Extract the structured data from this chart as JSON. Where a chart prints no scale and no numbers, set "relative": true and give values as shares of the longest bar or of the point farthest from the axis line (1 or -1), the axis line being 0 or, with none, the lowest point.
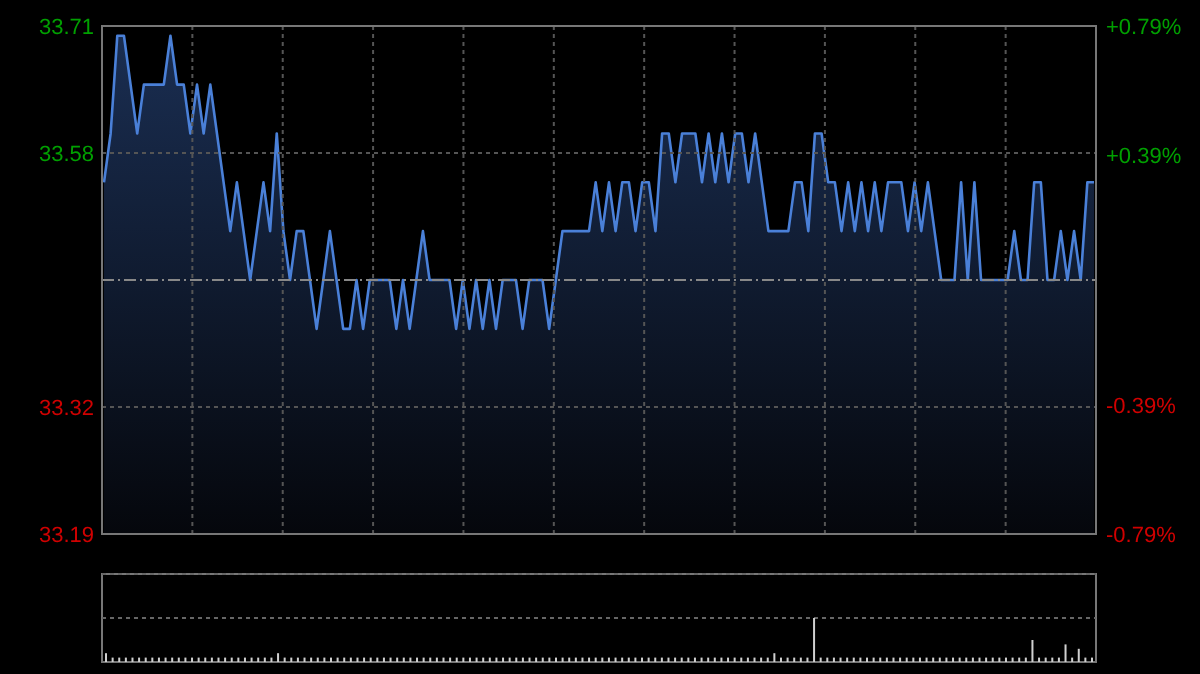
{
  "chart_data": [
    {
      "type": "area",
      "categories": [
        null,
        null,
        null,
        null,
        null,
        null,
        null,
        null,
        null,
        null,
        null,
        null,
        null,
        null,
        null,
        null,
        null,
        null,
        null,
        null,
        null,
        null,
        null,
        null,
        null,
        null,
        null,
        null,
        null,
        null,
        null,
        null,
        null,
        null,
        null,
        null,
        null,
        null,
        null,
        null,
        null,
        null,
        null,
        null,
        null,
        null,
        null,
        null,
        null,
        null,
        null,
        null,
        null,
        null,
        null,
        null,
        null,
        null,
        null,
        null,
        null,
        null,
        null,
        null,
        null,
        null,
        null,
        null,
        null,
        null,
        null,
        null,
        null,
        null,
        null,
        null,
        null,
        null,
        null,
        null,
        null,
        null,
        null,
        null,
        null,
        null,
        null,
        null,
        null,
        null,
        null,
        null,
        null,
        null,
        null,
        null,
        null,
        null,
        null,
        null,
        null,
        null,
        null,
        null,
        null,
        null,
        null,
        null,
        null,
        null,
        null,
        null,
        null,
        null,
        null,
        null,
        null,
        null,
        null,
        null,
        null,
        null,
        null,
        null,
        null,
        null,
        null,
        null,
        null,
        null,
        null,
        null,
        null,
        null,
        null,
        null,
        null,
        null,
        null,
        null,
        null,
        null,
        null,
        null,
        null,
        null,
        null,
        null,
        null,
        null
      ],
      "series": [
        {
          "color": "#4a80d8",
          "values": [
            33.55,
            33.6,
            33.7,
            33.7,
            33.65,
            33.6,
            33.65,
            33.65,
            33.65,
            33.65,
            33.7,
            33.65,
            33.65,
            33.6,
            33.65,
            33.6,
            33.65,
            33.6,
            33.55,
            33.5,
            33.55,
            33.5,
            33.45,
            33.5,
            33.55,
            33.5,
            33.6,
            33.5,
            33.45,
            33.5,
            33.5,
            33.45,
            33.4,
            33.45,
            33.5,
            33.45,
            33.4,
            33.4,
            33.45,
            33.4,
            33.45,
            33.45,
            33.45,
            33.45,
            33.4,
            33.45,
            33.4,
            33.45,
            33.5,
            33.45,
            33.45,
            33.45,
            33.45,
            33.4,
            33.45,
            33.4,
            33.45,
            33.4,
            33.45,
            33.4,
            33.45,
            33.45,
            33.45,
            33.4,
            33.45,
            33.45,
            33.45,
            33.4,
            33.45,
            33.5,
            33.5,
            33.5,
            33.5,
            33.5,
            33.55,
            33.5,
            33.55,
            33.5,
            33.55,
            33.55,
            33.5,
            33.55,
            33.55,
            33.5,
            33.6,
            33.6,
            33.55,
            33.6,
            33.6,
            33.6,
            33.55,
            33.6,
            33.55,
            33.6,
            33.55,
            33.6,
            33.6,
            33.55,
            33.6,
            33.55,
            33.5,
            33.5,
            33.5,
            33.5,
            33.55,
            33.55,
            33.5,
            33.6,
            33.6,
            33.55,
            33.55,
            33.5,
            33.55,
            33.5,
            33.55,
            33.5,
            33.55,
            33.5,
            33.55,
            33.55,
            33.55,
            33.5,
            33.55,
            33.5,
            33.55,
            33.5,
            33.45,
            33.45,
            33.45,
            33.55,
            33.45,
            33.55,
            33.45,
            33.45,
            33.45,
            33.45,
            33.45,
            33.5,
            33.45,
            33.45,
            33.55,
            33.55,
            33.45,
            33.45,
            33.5,
            33.45,
            33.5,
            33.45,
            33.55,
            33.55
          ]
        }
      ],
      "ylim": [
        33.19,
        33.71
      ],
      "yticks": [
        33.71,
        33.58,
        33.32,
        33.19
      ],
      "y2lim": [
        -0.79,
        0.79
      ],
      "y2ticks": [
        {
          "value": 0.79,
          "label": "+0.79%"
        },
        {
          "value": 0.39,
          "label": "+0.39%"
        },
        {
          "value": -0.39,
          "label": "-0.39%"
        },
        {
          "value": -0.79,
          "label": "-0.79%"
        }
      ],
      "ref_lines": [
        {
          "axis": "y",
          "value": 33.45,
          "line_style": "dashed"
        }
      ],
      "grid": true
    },
    {
      "type": "bar",
      "relative": true,
      "categories": [
        null,
        null,
        null,
        null,
        null,
        null,
        null,
        null,
        null,
        null,
        null,
        null,
        null,
        null,
        null,
        null,
        null,
        null,
        null,
        null,
        null,
        null,
        null,
        null,
        null,
        null,
        null,
        null,
        null,
        null,
        null,
        null,
        null,
        null,
        null,
        null,
        null,
        null,
        null,
        null,
        null,
        null,
        null,
        null,
        null,
        null,
        null,
        null,
        null,
        null,
        null,
        null,
        null,
        null,
        null,
        null,
        null,
        null,
        null,
        null,
        null,
        null,
        null,
        null,
        null,
        null,
        null,
        null,
        null,
        null,
        null,
        null,
        null,
        null,
        null,
        null,
        null,
        null,
        null,
        null,
        null,
        null,
        null,
        null,
        null,
        null,
        null,
        null,
        null,
        null,
        null,
        null,
        null,
        null,
        null,
        null,
        null,
        null,
        null,
        null,
        null,
        null,
        null,
        null,
        null,
        null,
        null,
        null,
        null,
        null,
        null,
        null,
        null,
        null,
        null,
        null,
        null,
        null,
        null,
        null,
        null,
        null,
        null,
        null,
        null,
        null,
        null,
        null,
        null,
        null,
        null,
        null,
        null,
        null,
        null,
        null,
        null,
        null,
        null,
        null,
        null,
        null,
        null,
        null,
        null,
        null,
        null,
        null,
        null,
        null
      ],
      "series": [
        {
          "color": "#d0d0d0",
          "values": [
            0.2,
            0.1,
            0.1,
            0.1,
            0.1,
            0.1,
            0.1,
            0.1,
            0.1,
            0.1,
            0.1,
            0.1,
            0.1,
            0.1,
            0.1,
            0.1,
            0.1,
            0.1,
            0.1,
            0.1,
            0.1,
            0.1,
            0.1,
            0.1,
            0.1,
            0.1,
            0.2,
            0.1,
            0.1,
            0.1,
            0.1,
            0.1,
            0.1,
            0.1,
            0.1,
            0.1,
            0.1,
            0.1,
            0.1,
            0.1,
            0.1,
            0.1,
            0.1,
            0.1,
            0.1,
            0.1,
            0.1,
            0.1,
            0.1,
            0.1,
            0.1,
            0.1,
            0.1,
            0.1,
            0.1,
            0.1,
            0.1,
            0.1,
            0.1,
            0.1,
            0.1,
            0.1,
            0.1,
            0.1,
            0.1,
            0.1,
            0.1,
            0.1,
            0.1,
            0.1,
            0.1,
            0.1,
            0.1,
            0.1,
            0.1,
            0.1,
            0.1,
            0.1,
            0.1,
            0.1,
            0.1,
            0.1,
            0.1,
            0.1,
            0.1,
            0.1,
            0.1,
            0.1,
            0.1,
            0.1,
            0.1,
            0.1,
            0.1,
            0.1,
            0.1,
            0.1,
            0.1,
            0.1,
            0.1,
            0.1,
            0.1,
            0.2,
            0.1,
            0.1,
            0.1,
            0.1,
            0.1,
            1,
            0.1,
            0.1,
            0.1,
            0.1,
            0.1,
            0.1,
            0.1,
            0.1,
            0.1,
            0.1,
            0.1,
            0.1,
            0.1,
            0.1,
            0.1,
            0.1,
            0.1,
            0.1,
            0.1,
            0.1,
            0.1,
            0.1,
            0.1,
            0.1,
            0.1,
            0.1,
            0.1,
            0.1,
            0.1,
            0.1,
            0.1,
            0.1,
            0.5,
            0.1,
            0.1,
            0.1,
            0.1,
            0.4,
            0.1,
            0.3,
            0.1,
            0.1
          ]
        }
      ]
    }
  ]
}
